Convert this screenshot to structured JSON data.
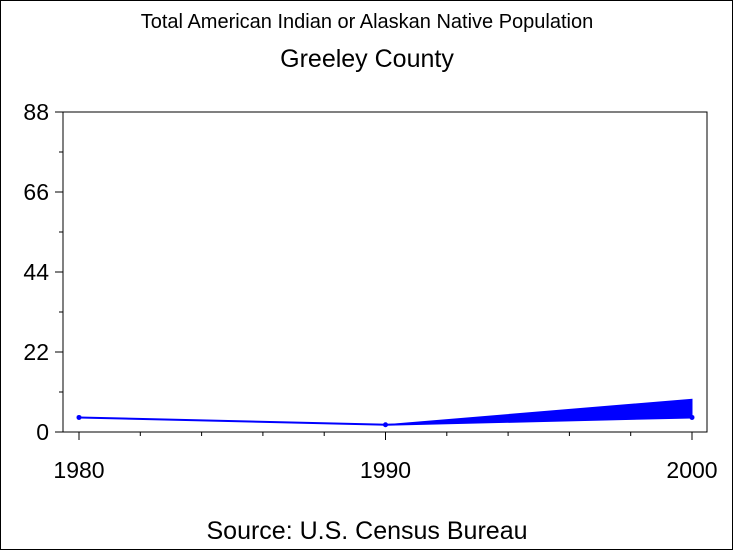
{
  "chart_data": {
    "type": "line",
    "title": "Total American Indian or Alaskan Native Population",
    "subtitle": "Greeley County",
    "source": "Source: U.S. Census Bureau",
    "x": [
      1980,
      1990,
      2000
    ],
    "x_ticks": [
      "1980",
      "1990",
      "2000"
    ],
    "y_ticks": [
      "0",
      "22",
      "44",
      "66",
      "88"
    ],
    "xlim": [
      1980,
      2000
    ],
    "ylim": [
      0,
      88
    ],
    "series": [
      {
        "values": [
          4,
          2,
          4
        ]
      }
    ],
    "band": {
      "x": [
        1990,
        2000
      ],
      "lower": [
        2,
        4
      ],
      "upper": [
        2,
        9
      ]
    },
    "color": "#0000ff",
    "grid": false
  }
}
